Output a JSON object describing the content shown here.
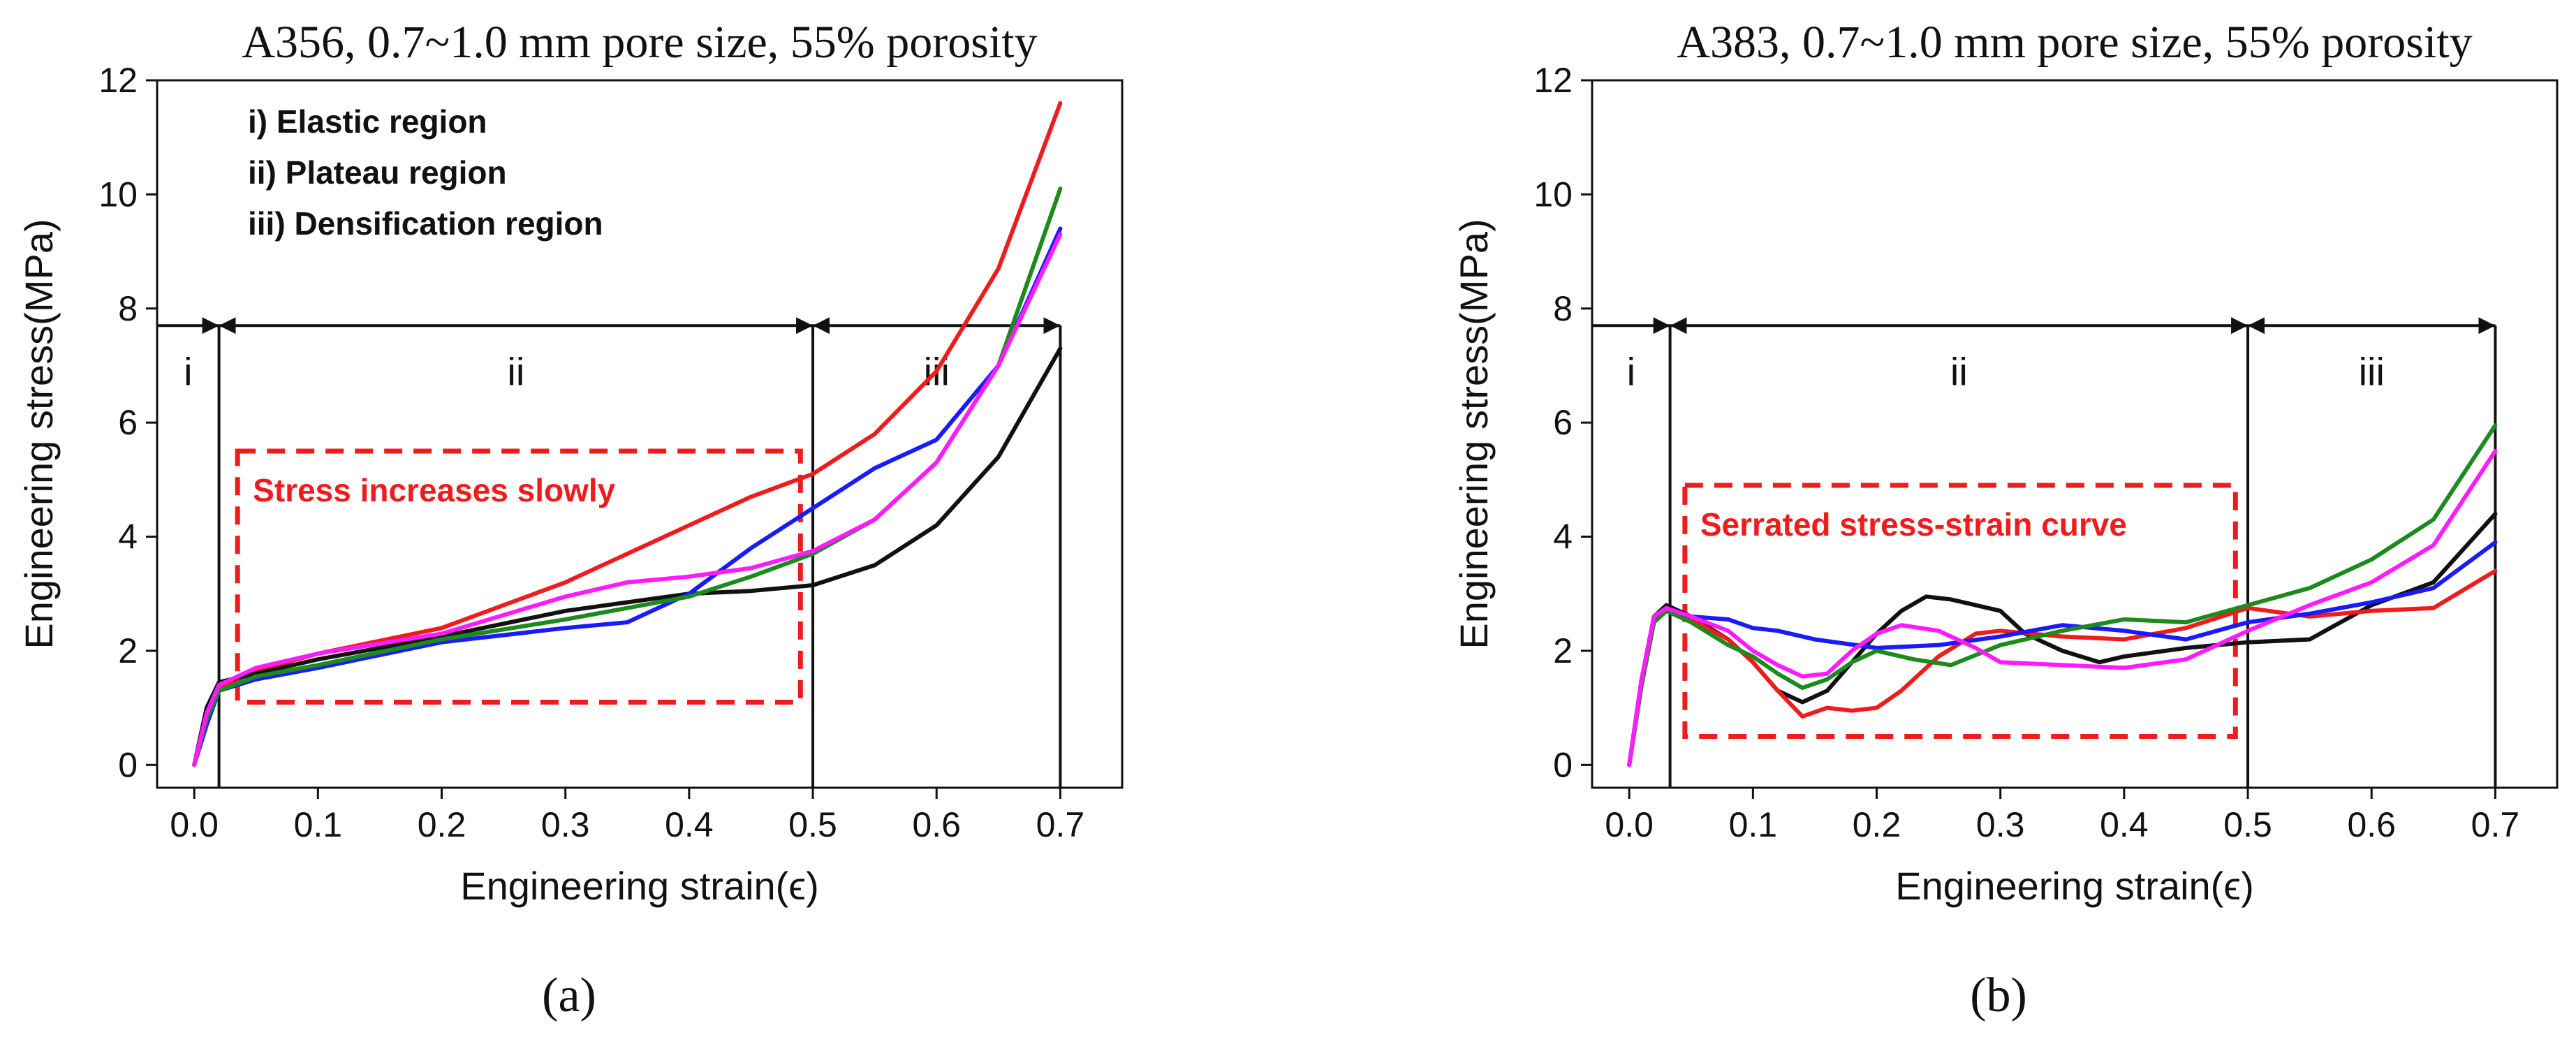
{
  "chart_data": [
    {
      "type": "line",
      "title": "A356, 0.7~1.0 mm pore size, 55% porosity",
      "xlabel": "Engineering strain(ϵ)",
      "ylabel": "Engineering stress(MPa)",
      "xlim": [
        -0.03,
        0.75
      ],
      "ylim": [
        -0.4,
        12
      ],
      "xticks": [
        0.0,
        0.1,
        0.2,
        0.3,
        0.4,
        0.5,
        0.6,
        0.7
      ],
      "xtick_labels": [
        "0.0",
        "0.1",
        "0.2",
        "0.3",
        "0.4",
        "0.5",
        "0.6",
        "0.7"
      ],
      "yticks": [
        0,
        2,
        4,
        6,
        8,
        10,
        12
      ],
      "ytick_labels": [
        "0",
        "2",
        "4",
        "6",
        "8",
        "10",
        "12"
      ],
      "grid": false,
      "legend_items": [
        "i) Elastic region",
        "ii) Plateau region",
        "iii) Densification region"
      ],
      "regions": {
        "labels": [
          "i",
          "ii",
          "iii"
        ],
        "boundaries": [
          -0.03,
          0.02,
          0.5,
          0.7
        ],
        "arrow_y": 7.7,
        "label_y": 6.9
      },
      "annotation_box": {
        "x": [
          0.035,
          0.49
        ],
        "y": [
          1.1,
          5.5
        ],
        "text": "Stress increases slowly"
      },
      "series": [
        {
          "name": "red",
          "color": "#ee1c1c",
          "x": [
            0,
            0.01,
            0.02,
            0.05,
            0.1,
            0.2,
            0.3,
            0.4,
            0.45,
            0.5,
            0.55,
            0.6,
            0.65,
            0.7
          ],
          "y": [
            0,
            0.9,
            1.35,
            1.65,
            1.95,
            2.4,
            3.2,
            4.2,
            4.7,
            5.1,
            5.8,
            6.9,
            8.7,
            11.6
          ]
        },
        {
          "name": "black",
          "color": "#111111",
          "x": [
            0,
            0.01,
            0.02,
            0.05,
            0.1,
            0.2,
            0.3,
            0.35,
            0.4,
            0.45,
            0.5,
            0.55,
            0.6,
            0.65,
            0.7
          ],
          "y": [
            0,
            1.0,
            1.45,
            1.6,
            1.85,
            2.25,
            2.7,
            2.85,
            3.0,
            3.05,
            3.15,
            3.5,
            4.2,
            5.4,
            7.3
          ]
        },
        {
          "name": "blue",
          "color": "#1a1aff",
          "x": [
            0,
            0.01,
            0.02,
            0.05,
            0.1,
            0.2,
            0.3,
            0.35,
            0.4,
            0.45,
            0.5,
            0.55,
            0.6,
            0.65,
            0.7
          ],
          "y": [
            0,
            0.7,
            1.3,
            1.5,
            1.7,
            2.15,
            2.4,
            2.5,
            3.0,
            3.8,
            4.5,
            5.2,
            5.7,
            7.0,
            9.4
          ]
        },
        {
          "name": "green",
          "color": "#1e8a1e",
          "x": [
            0,
            0.01,
            0.02,
            0.05,
            0.1,
            0.2,
            0.3,
            0.4,
            0.45,
            0.5,
            0.55,
            0.6,
            0.65,
            0.7
          ],
          "y": [
            0,
            0.8,
            1.3,
            1.55,
            1.75,
            2.2,
            2.55,
            2.95,
            3.3,
            3.7,
            4.3,
            5.3,
            7.0,
            10.1
          ]
        },
        {
          "name": "magenta",
          "color": "#ff1aff",
          "x": [
            0,
            0.01,
            0.02,
            0.05,
            0.1,
            0.2,
            0.3,
            0.35,
            0.4,
            0.45,
            0.5,
            0.55,
            0.6,
            0.65,
            0.7
          ],
          "y": [
            0,
            0.9,
            1.4,
            1.7,
            1.95,
            2.3,
            2.95,
            3.2,
            3.3,
            3.45,
            3.75,
            4.3,
            5.3,
            7.0,
            9.3
          ]
        }
      ]
    },
    {
      "type": "line",
      "title": "A383, 0.7~1.0 mm pore size, 55% porosity",
      "xlabel": "Engineering strain(ϵ)",
      "ylabel": "Engineering stress(MPa)",
      "xlim": [
        -0.03,
        0.75
      ],
      "ylim": [
        -0.4,
        12
      ],
      "xticks": [
        0.0,
        0.1,
        0.2,
        0.3,
        0.4,
        0.5,
        0.6,
        0.7
      ],
      "xtick_labels": [
        "0.0",
        "0.1",
        "0.2",
        "0.3",
        "0.4",
        "0.5",
        "0.6",
        "0.7"
      ],
      "yticks": [
        0,
        2,
        4,
        6,
        8,
        10,
        12
      ],
      "ytick_labels": [
        "0",
        "2",
        "4",
        "6",
        "8",
        "10",
        "12"
      ],
      "grid": false,
      "legend_items": [],
      "regions": {
        "labels": [
          "i",
          "ii",
          "iii"
        ],
        "boundaries": [
          -0.03,
          0.033,
          0.5,
          0.7
        ],
        "arrow_y": 7.7,
        "label_y": 6.9
      },
      "annotation_box": {
        "x": [
          0.045,
          0.49
        ],
        "y": [
          0.5,
          4.9
        ],
        "text": "Serrated stress-strain curve"
      },
      "series": [
        {
          "name": "black",
          "color": "#111111",
          "x": [
            0,
            0.01,
            0.02,
            0.03,
            0.05,
            0.08,
            0.1,
            0.12,
            0.14,
            0.16,
            0.18,
            0.2,
            0.22,
            0.24,
            0.26,
            0.28,
            0.3,
            0.32,
            0.35,
            0.38,
            0.4,
            0.45,
            0.5,
            0.55,
            0.6,
            0.65,
            0.7
          ],
          "y": [
            0,
            1.5,
            2.6,
            2.8,
            2.6,
            2.2,
            1.8,
            1.3,
            1.1,
            1.3,
            1.8,
            2.3,
            2.7,
            2.95,
            2.9,
            2.8,
            2.7,
            2.3,
            2.0,
            1.8,
            1.9,
            2.05,
            2.15,
            2.2,
            2.8,
            3.2,
            4.4
          ]
        },
        {
          "name": "red",
          "color": "#ee1c1c",
          "x": [
            0,
            0.01,
            0.02,
            0.03,
            0.05,
            0.08,
            0.1,
            0.12,
            0.14,
            0.16,
            0.18,
            0.2,
            0.22,
            0.25,
            0.28,
            0.3,
            0.35,
            0.4,
            0.45,
            0.5,
            0.55,
            0.6,
            0.65,
            0.7
          ],
          "y": [
            0,
            1.4,
            2.5,
            2.7,
            2.55,
            2.2,
            1.8,
            1.3,
            0.85,
            1.0,
            0.95,
            1.0,
            1.3,
            1.9,
            2.3,
            2.35,
            2.25,
            2.2,
            2.4,
            2.75,
            2.6,
            2.7,
            2.75,
            3.4
          ]
        },
        {
          "name": "blue",
          "color": "#1a1aff",
          "x": [
            0,
            0.01,
            0.02,
            0.03,
            0.05,
            0.08,
            0.1,
            0.12,
            0.15,
            0.2,
            0.25,
            0.3,
            0.35,
            0.4,
            0.45,
            0.5,
            0.55,
            0.6,
            0.65,
            0.7
          ],
          "y": [
            0,
            1.5,
            2.55,
            2.7,
            2.6,
            2.55,
            2.4,
            2.35,
            2.2,
            2.05,
            2.1,
            2.25,
            2.45,
            2.35,
            2.2,
            2.5,
            2.65,
            2.85,
            3.1,
            3.9
          ]
        },
        {
          "name": "green",
          "color": "#1e8a1e",
          "x": [
            0,
            0.01,
            0.02,
            0.03,
            0.05,
            0.08,
            0.1,
            0.12,
            0.14,
            0.16,
            0.18,
            0.2,
            0.23,
            0.26,
            0.3,
            0.35,
            0.4,
            0.45,
            0.5,
            0.55,
            0.6,
            0.65,
            0.7
          ],
          "y": [
            0,
            1.4,
            2.5,
            2.7,
            2.5,
            2.1,
            1.9,
            1.6,
            1.35,
            1.5,
            1.8,
            2.0,
            1.85,
            1.75,
            2.1,
            2.35,
            2.55,
            2.5,
            2.8,
            3.1,
            3.6,
            4.3,
            5.95
          ]
        },
        {
          "name": "magenta",
          "color": "#ff1aff",
          "x": [
            0,
            0.01,
            0.02,
            0.03,
            0.05,
            0.08,
            0.1,
            0.12,
            0.14,
            0.16,
            0.18,
            0.2,
            0.22,
            0.25,
            0.28,
            0.3,
            0.35,
            0.4,
            0.45,
            0.5,
            0.55,
            0.6,
            0.65,
            0.7
          ],
          "y": [
            0,
            1.5,
            2.6,
            2.75,
            2.6,
            2.35,
            2.0,
            1.75,
            1.55,
            1.6,
            2.0,
            2.3,
            2.45,
            2.35,
            2.05,
            1.8,
            1.75,
            1.7,
            1.85,
            2.35,
            2.8,
            3.2,
            3.85,
            5.5
          ]
        }
      ]
    }
  ],
  "captions": [
    "(a)",
    "(b)"
  ]
}
